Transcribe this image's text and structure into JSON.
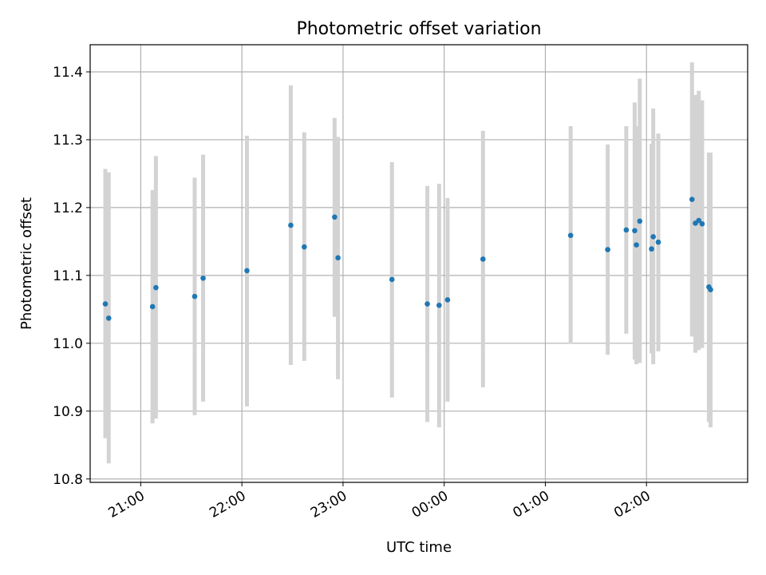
{
  "chart_data": {
    "type": "scatter",
    "title": "Photometric offset variation",
    "xlabel": "UTC time",
    "ylabel": "Photometric offset",
    "x_axis": {
      "kind": "time",
      "start": "20:30",
      "end": "03:00",
      "ticks": [
        "21:00",
        "22:00",
        "23:00",
        "00:00",
        "01:00",
        "02:00"
      ]
    },
    "ylim": [
      10.795,
      11.44
    ],
    "yticks": [
      10.8,
      10.9,
      11.0,
      11.1,
      11.2,
      11.3,
      11.4
    ],
    "ytick_labels": [
      "10.8",
      "10.9",
      "11.0",
      "11.1",
      "11.2",
      "11.3",
      "11.4"
    ],
    "grid": true,
    "point_color": "#1f77b4",
    "errorbar_color": "#d3d3d3",
    "points": [
      {
        "x": "20:39",
        "y": 11.058,
        "lo": 10.86,
        "hi": 11.257
      },
      {
        "x": "20:41",
        "y": 11.037,
        "lo": 10.823,
        "hi": 11.252
      },
      {
        "x": "21:07",
        "y": 11.054,
        "lo": 10.882,
        "hi": 11.226
      },
      {
        "x": "21:09",
        "y": 11.082,
        "lo": 10.889,
        "hi": 11.276
      },
      {
        "x": "21:32",
        "y": 11.069,
        "lo": 10.894,
        "hi": 11.244
      },
      {
        "x": "21:37",
        "y": 11.096,
        "lo": 10.914,
        "hi": 11.278
      },
      {
        "x": "22:03",
        "y": 11.107,
        "lo": 10.907,
        "hi": 11.306
      },
      {
        "x": "22:29",
        "y": 11.174,
        "lo": 10.968,
        "hi": 11.38
      },
      {
        "x": "22:37",
        "y": 11.142,
        "lo": 10.974,
        "hi": 11.311
      },
      {
        "x": "22:55",
        "y": 11.186,
        "lo": 11.039,
        "hi": 11.332
      },
      {
        "x": "22:57",
        "y": 11.126,
        "lo": 10.947,
        "hi": 11.304
      },
      {
        "x": "23:29",
        "y": 11.094,
        "lo": 10.92,
        "hi": 11.267
      },
      {
        "x": "23:50",
        "y": 11.058,
        "lo": 10.884,
        "hi": 11.232
      },
      {
        "x": "23:57",
        "y": 11.056,
        "lo": 10.876,
        "hi": 11.235
      },
      {
        "x": "00:02",
        "y": 11.064,
        "lo": 10.914,
        "hi": 11.214
      },
      {
        "x": "00:23",
        "y": 11.124,
        "lo": 10.935,
        "hi": 11.313
      },
      {
        "x": "01:15",
        "y": 11.159,
        "lo": 10.999,
        "hi": 11.32
      },
      {
        "x": "01:37",
        "y": 11.138,
        "lo": 10.983,
        "hi": 11.293
      },
      {
        "x": "01:48",
        "y": 11.167,
        "lo": 11.014,
        "hi": 11.32
      },
      {
        "x": "01:53",
        "y": 11.166,
        "lo": 10.976,
        "hi": 11.355
      },
      {
        "x": "01:54",
        "y": 11.145,
        "lo": 10.969,
        "hi": 11.32
      },
      {
        "x": "01:56",
        "y": 11.18,
        "lo": 10.971,
        "hi": 11.39
      },
      {
        "x": "02:03",
        "y": 11.139,
        "lo": 10.985,
        "hi": 11.294
      },
      {
        "x": "02:04",
        "y": 11.157,
        "lo": 10.969,
        "hi": 11.346
      },
      {
        "x": "02:07",
        "y": 11.149,
        "lo": 10.988,
        "hi": 11.309
      },
      {
        "x": "02:27",
        "y": 11.212,
        "lo": 11.01,
        "hi": 11.414
      },
      {
        "x": "02:29",
        "y": 11.177,
        "lo": 10.986,
        "hi": 11.366
      },
      {
        "x": "02:31",
        "y": 11.181,
        "lo": 10.99,
        "hi": 11.372
      },
      {
        "x": "02:33",
        "y": 11.176,
        "lo": 10.993,
        "hi": 11.358
      },
      {
        "x": "02:37",
        "y": 11.083,
        "lo": 10.884,
        "hi": 11.281
      },
      {
        "x": "02:38",
        "y": 11.079,
        "lo": 10.876,
        "hi": 11.281
      }
    ]
  }
}
